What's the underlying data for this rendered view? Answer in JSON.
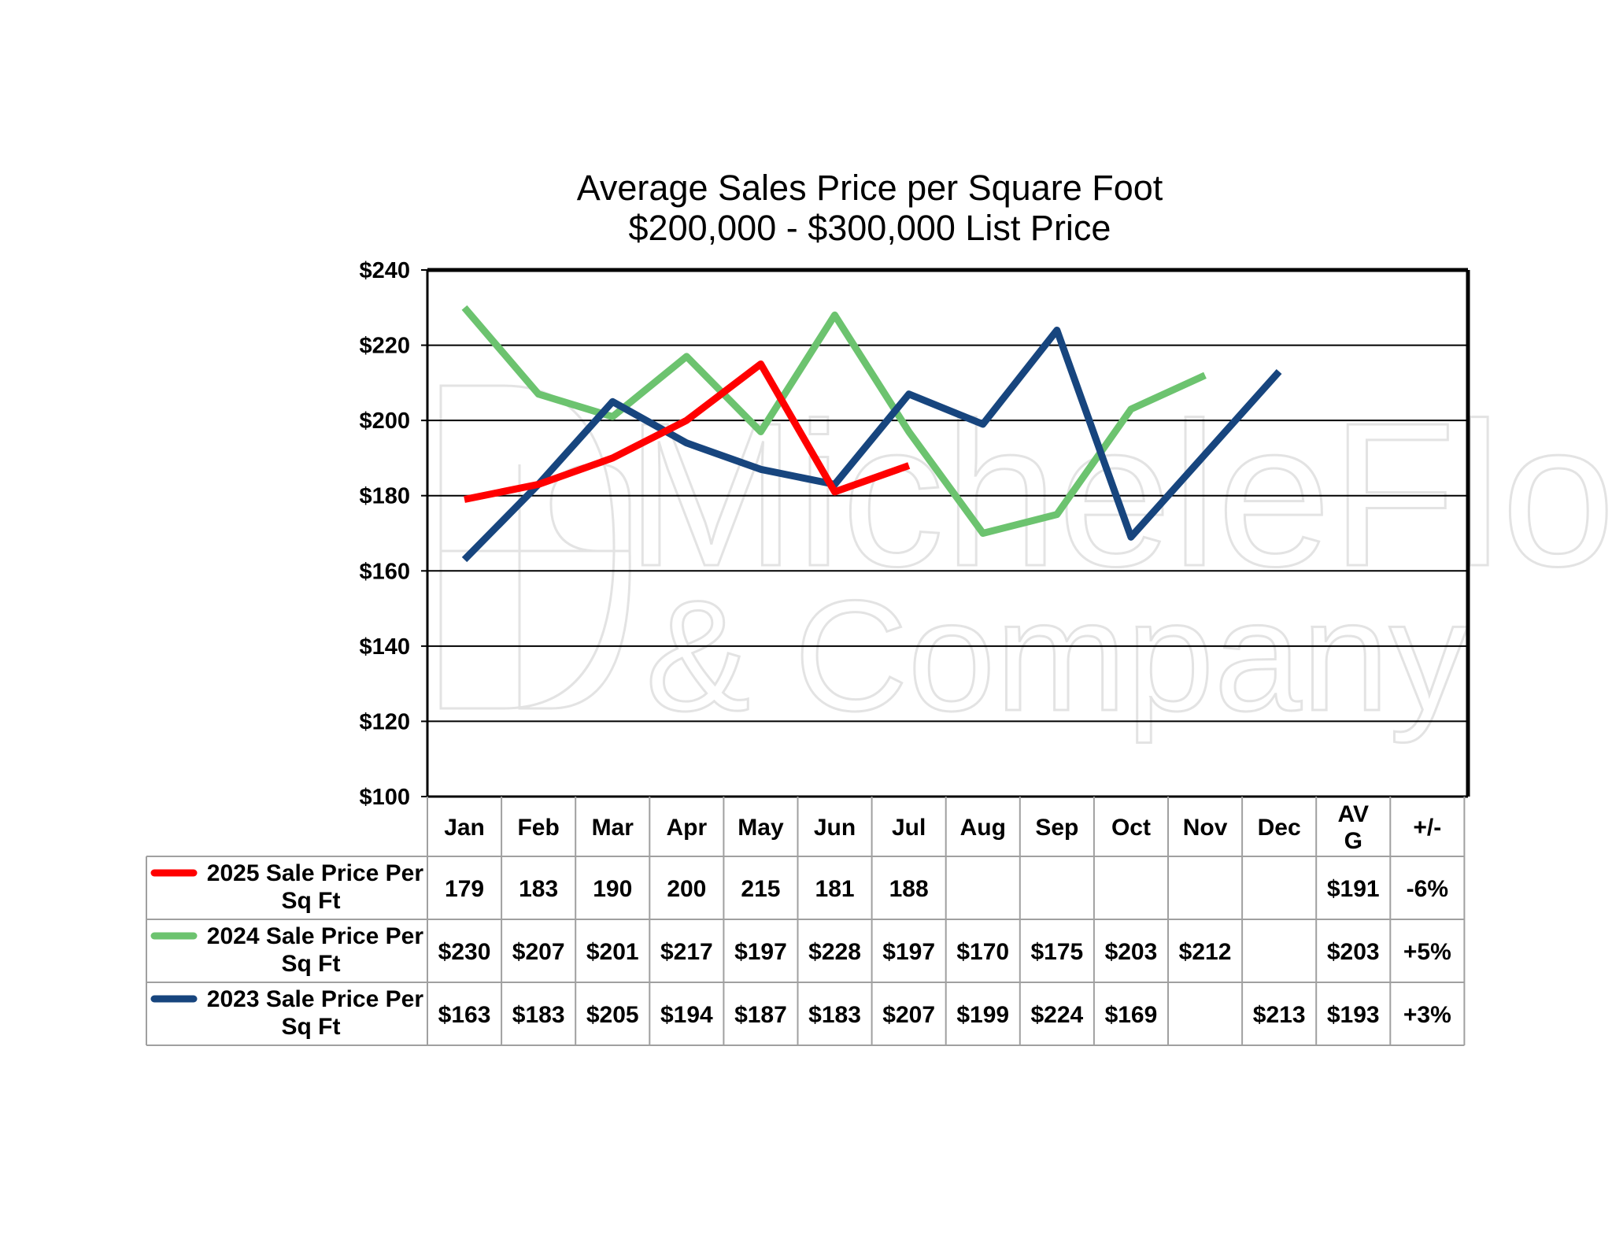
{
  "chart_data": {
    "type": "line",
    "title": "Average Sales Price per Square Foot",
    "subtitle": "$200,000 - $300,000 List Price",
    "ylim": [
      100,
      240
    ],
    "yticks": [
      100,
      120,
      140,
      160,
      180,
      200,
      220,
      240
    ],
    "ytick_labels": [
      "$100",
      "$120",
      "$140",
      "$160",
      "$180",
      "$200",
      "$220",
      "$240"
    ],
    "grid": true,
    "categories": [
      "Jan",
      "Feb",
      "Mar",
      "Apr",
      "May",
      "Jun",
      "Jul",
      "Aug",
      "Sep",
      "Oct",
      "Nov",
      "Dec"
    ],
    "summary_headers": [
      "AV\nG",
      "+/-"
    ],
    "series": [
      {
        "name": "2025 Sale Price Per Sq Ft",
        "color": "#ff0000",
        "values": [
          179,
          183,
          190,
          200,
          215,
          181,
          188,
          null,
          null,
          null,
          null,
          null
        ],
        "cells": [
          "179",
          "183",
          "190",
          "200",
          "215",
          "181",
          "188",
          "",
          "",
          "",
          "",
          ""
        ],
        "avg": "$191",
        "change": "-6%"
      },
      {
        "name": "2024 Sale Price Per Sq Ft",
        "color": "#6cc36f",
        "values": [
          230,
          207,
          201,
          217,
          197,
          228,
          197,
          170,
          175,
          203,
          212,
          null
        ],
        "cells": [
          "$230",
          "$207",
          "$201",
          "$217",
          "$197",
          "$228",
          "$197",
          "$170",
          "$175",
          "$203",
          "$212",
          ""
        ],
        "avg": "$203",
        "change": "+5%"
      },
      {
        "name": "2023 Sale Price Per Sq Ft",
        "color": "#17457e",
        "values": [
          163,
          183,
          205,
          194,
          187,
          183,
          207,
          199,
          224,
          169,
          null,
          213
        ],
        "cells": [
          "$163",
          "$183",
          "$205",
          "$194",
          "$187",
          "$183",
          "$207",
          "$199",
          "$224",
          "$169",
          "",
          "$213"
        ],
        "avg": "$193",
        "change": "+3%"
      }
    ]
  },
  "watermark": {
    "line1": "MicheleFlory",
    "line2": "& Company"
  }
}
